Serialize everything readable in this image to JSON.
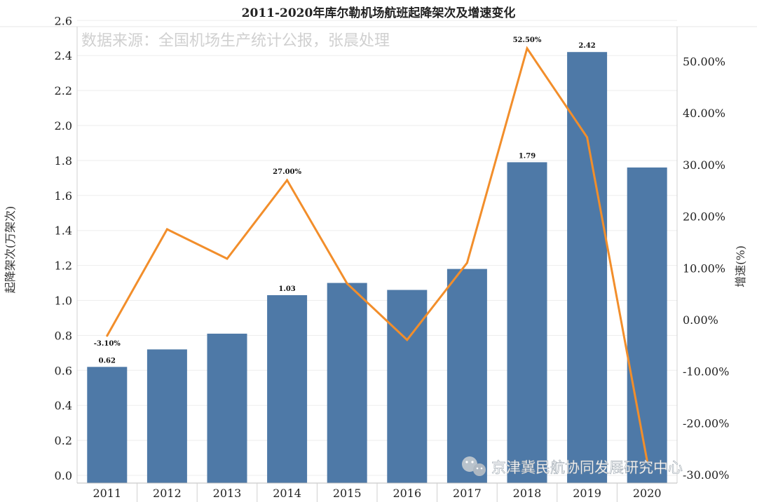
{
  "chart_data": {
    "type": "bar",
    "title": "2011-2020年库尔勒机场航班起降架次及增速变化",
    "source_note": "数据来源：全国机场生产统计公报，张晨处理",
    "categories": [
      "2011",
      "2012",
      "2013",
      "2014",
      "2015",
      "2016",
      "2017",
      "2018",
      "2019",
      "2020"
    ],
    "series": [
      {
        "name": "起降架次(万架次)",
        "type": "bar",
        "axis": "left",
        "values": [
          0.62,
          0.72,
          0.81,
          1.03,
          1.1,
          1.06,
          1.18,
          1.79,
          2.42,
          1.76
        ],
        "color": "#4e79a7"
      },
      {
        "name": "增速(%)",
        "type": "line",
        "axis": "right",
        "values": [
          -3.1,
          17.5,
          11.8,
          27.0,
          7.0,
          -3.9,
          11.0,
          52.5,
          35.3,
          -27.3
        ],
        "color": "#f28e2b"
      }
    ],
    "bar_value_labels": [
      {
        "index": 0,
        "text": "0.62"
      },
      {
        "index": 3,
        "text": "1.03"
      },
      {
        "index": 7,
        "text": "1.79"
      },
      {
        "index": 8,
        "text": "2.42"
      }
    ],
    "line_value_labels": [
      {
        "index": 0,
        "text": "-3.10%"
      },
      {
        "index": 3,
        "text": "27.00%"
      },
      {
        "index": 7,
        "text": "52.50%"
      }
    ],
    "ylabel_left": "起降架次(万架次)",
    "ylabel_right": "增速(%)",
    "ylim_left": [
      0,
      2.6
    ],
    "left_ticks": [
      "0.0",
      "0.2",
      "0.4",
      "0.6",
      "0.8",
      "1.0",
      "1.2",
      "1.4",
      "1.6",
      "1.8",
      "2.0",
      "2.2",
      "2.4",
      "2.6"
    ],
    "ylim_right": [
      -30,
      55
    ],
    "right_ticks": [
      "-30.00%",
      "-20.00%",
      "-10.00%",
      "0.00%",
      "10.00%",
      "20.00%",
      "30.00%",
      "40.00%",
      "50.00%"
    ],
    "grid": true
  },
  "watermark": {
    "text": "京津冀民航协同发展研究中心",
    "icon": "wechat-icon"
  }
}
